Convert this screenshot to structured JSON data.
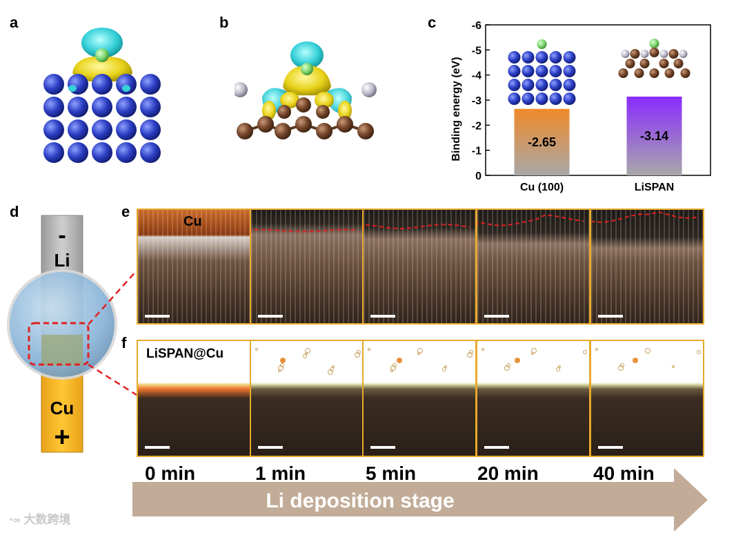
{
  "panels": {
    "a": "a",
    "b": "b",
    "c": "c",
    "d": "d",
    "e": "e",
    "f": "f"
  },
  "chart_data": {
    "type": "bar",
    "categories": [
      "Cu (100)",
      "LiSPAN"
    ],
    "values": [
      -2.65,
      -3.14
    ],
    "value_labels": [
      "-2.65",
      "-3.14"
    ],
    "ylabel": "Binding energy (eV)",
    "ylim": [
      0,
      -6
    ],
    "yticks": [
      "0",
      "-1",
      "-2",
      "-3",
      "-4",
      "-5",
      "-6"
    ],
    "colors": [
      "#f08a2a",
      "#8a2cff"
    ]
  },
  "cell": {
    "minus": "-",
    "li": "Li",
    "cu": "Cu",
    "plus": "+"
  },
  "rows": {
    "e_label": "Cu",
    "f_label": "LiSPAN@Cu"
  },
  "timeline": {
    "times": [
      "0 min",
      "1 min",
      "5 min",
      "20 min",
      "40 min"
    ],
    "stage": "Li deposition stage"
  },
  "watermark": "大数跨境",
  "colors": {
    "li_atom": "#3a4fd0",
    "c_atom": "#7a4a2a",
    "n_atom": "#b8b8c8",
    "li_adsorbed": "#7ad36a",
    "frame": "#e8a92b",
    "red_dash": "#e02020",
    "arrow": "#c2ac98"
  }
}
